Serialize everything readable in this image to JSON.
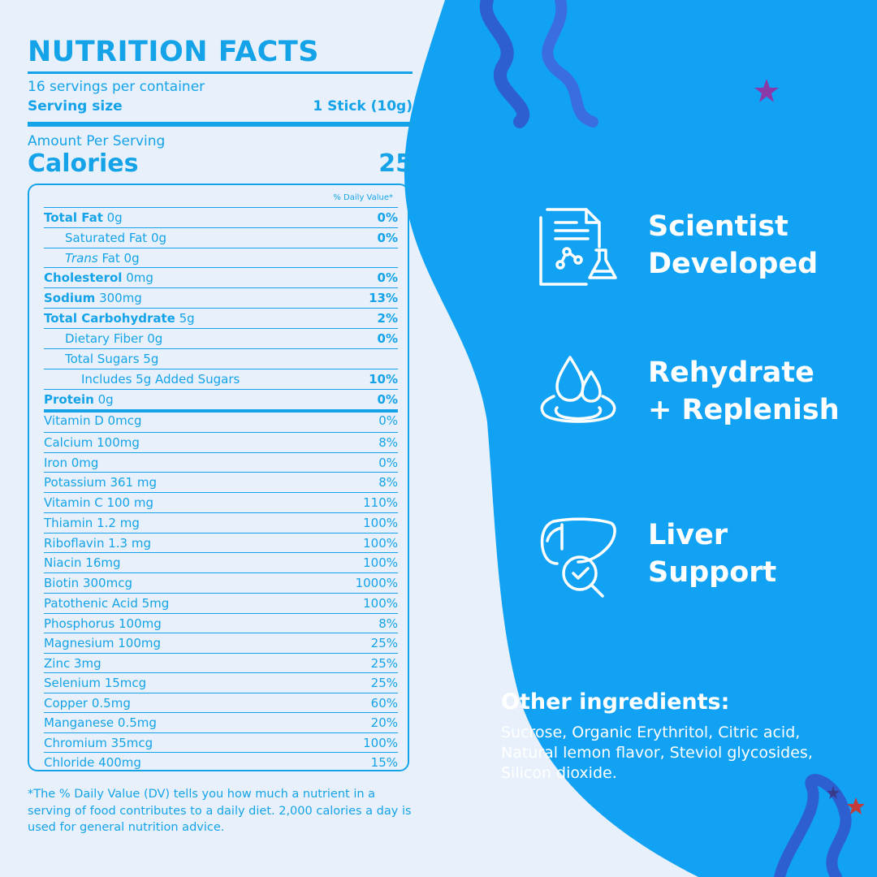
{
  "colors": {
    "accent": "#14a3e8",
    "panel_bg": "#e8f1fb",
    "wave_bg": "#12a2f3",
    "text_on_blue": "#ffffff"
  },
  "nutrition": {
    "title": "NUTRITION FACTS",
    "servings": "16 servings per container",
    "serving_size_label": "Serving size",
    "serving_size_value": "1 Stick (10g)",
    "amount_per_serving": "Amount Per Serving",
    "calories_label": "Calories",
    "calories_value": "25",
    "dv_header": "% Daily Value*",
    "rows": [
      {
        "label": "Total Fat",
        "value": " 0g",
        "pct": "0%"
      },
      {
        "label": "Saturated Fat 0g",
        "pct": "0%"
      },
      {
        "label_italic": "Trans",
        "label": " Fat 0g",
        "pct": ""
      },
      {
        "label": "Cholesterol",
        "value": " 0mg",
        "pct": "0%"
      },
      {
        "label": "Sodium",
        "value": " 300mg",
        "pct": "13%"
      },
      {
        "label": "Total Carbohydrate",
        "value": " 5g",
        "pct": "2%"
      },
      {
        "label": "Dietary Fiber 0g",
        "pct": "0%"
      },
      {
        "label": "Total Sugars 5g",
        "pct": ""
      },
      {
        "label": "Includes 5g Added Sugars",
        "pct": "10%"
      },
      {
        "label": "Protein",
        "value": " 0g",
        "pct": "0%"
      }
    ],
    "vitamins": [
      {
        "label": "Vitamin D 0mcg",
        "pct": "0%"
      },
      {
        "label": "Calcium 100mg",
        "pct": "8%"
      },
      {
        "label": "Iron 0mg",
        "pct": "0%"
      },
      {
        "label": "Potassium 361 mg",
        "pct": "8%"
      },
      {
        "label": "Vitamin C 100 mg",
        "pct": "110%"
      },
      {
        "label": "Thiamin 1.2 mg",
        "pct": "100%"
      },
      {
        "label": "Riboflavin 1.3 mg",
        "pct": "100%"
      },
      {
        "label": "Niacin 16mg",
        "pct": "100%"
      },
      {
        "label": "Biotin 300mcg",
        "pct": "1000%"
      },
      {
        "label": "Patothenic Acid 5mg",
        "pct": "100%"
      },
      {
        "label": "Phosphorus 100mg",
        "pct": "8%"
      },
      {
        "label": "Magnesium 100mg",
        "pct": "25%"
      },
      {
        "label": "Zinc 3mg",
        "pct": "25%"
      },
      {
        "label": "Selenium 15mcg",
        "pct": "25%"
      },
      {
        "label": "Copper 0.5mg",
        "pct": "60%"
      },
      {
        "label": "Manganese 0.5mg",
        "pct": "20%"
      },
      {
        "label": "Chromium 35mcg",
        "pct": "100%"
      },
      {
        "label": "Chloride 400mg",
        "pct": "15%"
      }
    ],
    "footnote": "*The % Daily Value (DV) tells you how much a nutrient in a serving of food contributes to a daily diet. 2,000 calories a day is used for general nutrition advice."
  },
  "features": [
    {
      "icon": "document-flask-icon",
      "line1": "Scientist",
      "line2": "Developed"
    },
    {
      "icon": "water-drops-icon",
      "line1": "Rehydrate",
      "line2": "+ Replenish"
    },
    {
      "icon": "liver-check-icon",
      "line1": "Liver",
      "line2": "Support"
    }
  ],
  "other_ingredients": {
    "title": "Other ingredients:",
    "line1": "Sucrose, Organic Erythritol, Citric acid,",
    "line2": "Natural lemon flavor, Steviol glycosides,",
    "line3": "Silicon dioxide."
  }
}
